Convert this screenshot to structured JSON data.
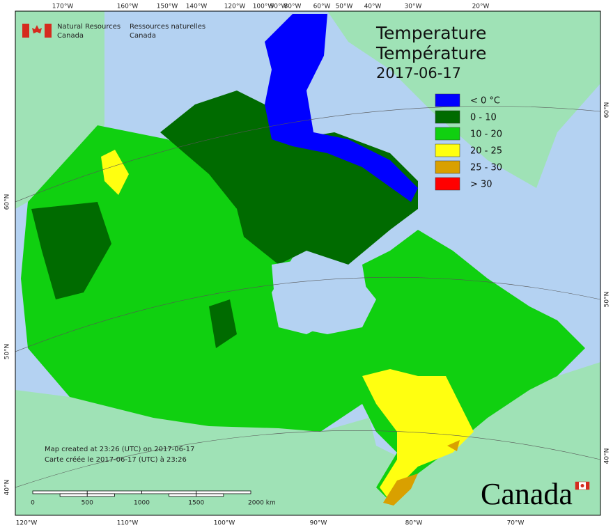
{
  "header": {
    "agency_en_line1": "Natural Resources",
    "agency_en_line2": "Canada",
    "agency_fr_line1": "Ressources naturelles",
    "agency_fr_line2": "Canada"
  },
  "title": {
    "en": "Temperature",
    "fr": "Température",
    "date": "2017-06-17"
  },
  "legend": [
    {
      "label": "< 0 °C",
      "color": "#0000ff"
    },
    {
      "label": "0 - 10",
      "color": "#006b00"
    },
    {
      "label": "10 - 20",
      "color": "#10d010"
    },
    {
      "label": "20 - 25",
      "color": "#ffff10"
    },
    {
      "label": "25 - 30",
      "color": "#d9a000"
    },
    {
      "label": "> 30",
      "color": "#ff0000"
    }
  ],
  "graticule": {
    "top": [
      "170°W",
      "160°W",
      "150°W",
      "140°W",
      "120°W",
      "100°W",
      "90°W",
      "80°W",
      "60°W",
      "50°W",
      "40°W",
      "30°W",
      "20°W"
    ],
    "bottom": [
      "120°W",
      "110°W",
      "100°W",
      "90°W",
      "80°W",
      "70°W"
    ],
    "left": [
      "60°N",
      "50°N",
      "40°N"
    ],
    "right": [
      "60°N",
      "50°N",
      "40°N"
    ]
  },
  "credits": {
    "en": "Map created at 23:26 (UTC) on 2017-06-17",
    "fr": "Carte créée le 2017-06-17 (UTC) à 23:26"
  },
  "scale_bar": {
    "labels": [
      "0",
      "500",
      "1000",
      "1500",
      "2000 km"
    ]
  },
  "wordmark": "Canada"
}
